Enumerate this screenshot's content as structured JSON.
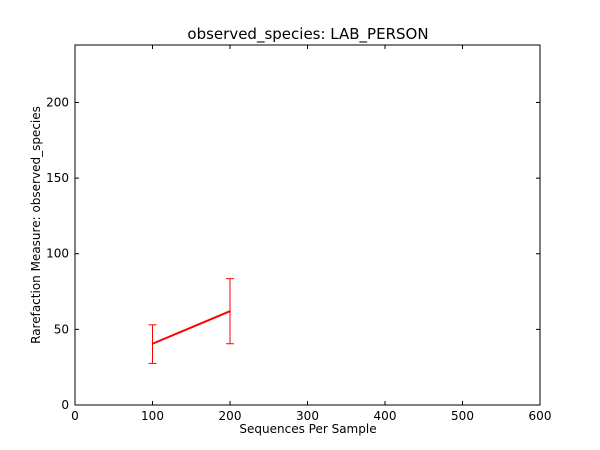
{
  "chart_data": {
    "type": "line",
    "title": "observed_species: LAB_PERSON",
    "xlabel": "Sequences Per Sample",
    "ylabel": "Rarefaction Measure: observed_species",
    "xlim": [
      0,
      600
    ],
    "ylim": [
      0,
      238
    ],
    "xticks": [
      0,
      100,
      200,
      300,
      400,
      500,
      600
    ],
    "yticks": [
      0,
      50,
      100,
      150,
      200
    ],
    "grid": false,
    "series": [
      {
        "x": [
          100,
          200
        ],
        "y": [
          40.5,
          62
        ],
        "err_low": [
          27.5,
          40.5
        ],
        "err_high": [
          53,
          83.5
        ],
        "color": "#ff0000"
      }
    ]
  }
}
